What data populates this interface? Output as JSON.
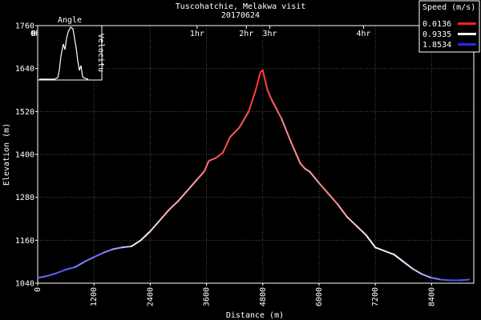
{
  "chart_data": {
    "type": "line",
    "title": "Tuscohatchie, Melakwa visit",
    "subtitle": "20170624",
    "xlabel": "Distance (m)",
    "ylabel": "Elevation (m)",
    "xlim": [
      0,
      9300
    ],
    "ylim": [
      1040,
      1760
    ],
    "x_ticks": [
      "0",
      "1200",
      "2400",
      "3600",
      "4800",
      "6000",
      "7200",
      "8400"
    ],
    "y_ticks": [
      "1040",
      "1160",
      "1280",
      "1400",
      "1520",
      "1640",
      "1760"
    ],
    "grid": true,
    "time_marks": [
      {
        "label": "0hr",
        "x": 0
      },
      {
        "label": "1hr",
        "x": 3400
      },
      {
        "label": "2hr",
        "x": 4450
      },
      {
        "label": "3hr",
        "x": 4950
      },
      {
        "label": "4hr",
        "x": 6950
      }
    ],
    "legend": {
      "title": "Speed (m/s)",
      "position": "top-right",
      "entries": [
        {
          "label": "0.0136",
          "color": "#ff2020"
        },
        {
          "label": "0.9335",
          "color": "#ffffff"
        },
        {
          "label": "1.8534",
          "color": "#2828ff"
        }
      ]
    },
    "inset": {
      "title": "Angle",
      "ylabel": "Velocity",
      "partial_labels": [
        "0",
        "Velocitu"
      ],
      "type": "line"
    },
    "series": [
      {
        "x": [
          0,
          200,
          400,
          600,
          800,
          1000,
          1200,
          1400,
          1600,
          1800,
          2000,
          2200,
          2400,
          2600,
          2800,
          3000,
          3200,
          3400,
          3550,
          3650,
          3800,
          3950,
          4100,
          4300,
          4500,
          4650,
          4750,
          4800,
          4900,
          5000,
          5200,
          5400,
          5600,
          5700,
          5800,
          6000,
          6200,
          6400,
          6600,
          6800,
          7000,
          7200,
          7400,
          7600,
          7800,
          8000,
          8200,
          8400,
          8600,
          8800,
          9000,
          9200
        ],
        "y": [
          1055,
          1060,
          1068,
          1078,
          1085,
          1100,
          1113,
          1125,
          1135,
          1140,
          1143,
          1160,
          1185,
          1215,
          1245,
          1270,
          1300,
          1330,
          1352,
          1382,
          1390,
          1405,
          1448,
          1475,
          1520,
          1580,
          1630,
          1635,
          1580,
          1550,
          1500,
          1435,
          1375,
          1360,
          1352,
          1320,
          1290,
          1260,
          1225,
          1200,
          1175,
          1140,
          1130,
          1120,
          1100,
          1080,
          1065,
          1055,
          1050,
          1048,
          1048,
          1050
        ],
        "speed": [
          1.5,
          1.6,
          1.6,
          1.7,
          1.5,
          1.4,
          1.6,
          1.5,
          1.4,
          1.3,
          1.1,
          0.9,
          0.8,
          0.7,
          0.6,
          0.6,
          0.6,
          0.5,
          0.4,
          0.3,
          0.2,
          0.2,
          0.2,
          0.3,
          0.2,
          0.1,
          0.1,
          0.1,
          0.2,
          0.2,
          0.4,
          0.5,
          0.4,
          0.5,
          0.6,
          0.5,
          0.4,
          0.5,
          0.6,
          0.7,
          0.8,
          0.9,
          0.8,
          0.9,
          1.0,
          1.1,
          1.2,
          1.4,
          1.6,
          1.7,
          1.7,
          1.6
        ]
      }
    ]
  }
}
